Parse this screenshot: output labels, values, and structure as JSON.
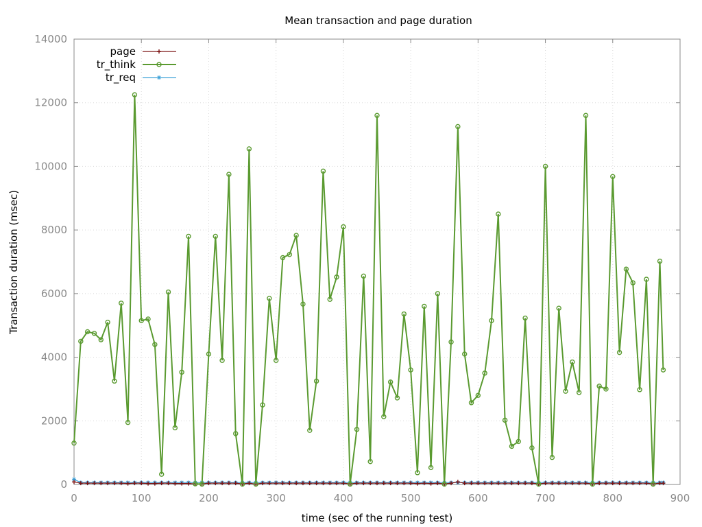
{
  "chart_data": {
    "type": "line",
    "title": "Mean transaction and page duration",
    "xlabel": "time (sec of the running test)",
    "ylabel": "Transaction duration (msec)",
    "xlim": [
      0,
      900
    ],
    "ylim": [
      0,
      14000
    ],
    "xticks": [
      0,
      100,
      200,
      300,
      400,
      500,
      600,
      700,
      800,
      900
    ],
    "yticks": [
      0,
      2000,
      4000,
      6000,
      8000,
      10000,
      12000,
      14000
    ],
    "grid": true,
    "legend_position": "top-left",
    "series": [
      {
        "name": "page",
        "color": "#7a1010",
        "marker": "plus",
        "points": [
          [
            0,
            80
          ],
          [
            10,
            40
          ],
          [
            20,
            40
          ],
          [
            30,
            40
          ],
          [
            40,
            40
          ],
          [
            50,
            40
          ],
          [
            60,
            40
          ],
          [
            70,
            40
          ],
          [
            80,
            30
          ],
          [
            90,
            40
          ],
          [
            100,
            40
          ],
          [
            110,
            30
          ],
          [
            120,
            30
          ],
          [
            130,
            40
          ],
          [
            140,
            40
          ],
          [
            150,
            30
          ],
          [
            160,
            30
          ],
          [
            170,
            30
          ],
          [
            180,
            20
          ],
          [
            190,
            20
          ],
          [
            200,
            40
          ],
          [
            210,
            40
          ],
          [
            220,
            40
          ],
          [
            230,
            40
          ],
          [
            240,
            40
          ],
          [
            250,
            20
          ],
          [
            260,
            40
          ],
          [
            270,
            10
          ],
          [
            280,
            40
          ],
          [
            290,
            40
          ],
          [
            300,
            40
          ],
          [
            310,
            40
          ],
          [
            320,
            40
          ],
          [
            330,
            40
          ],
          [
            340,
            40
          ],
          [
            350,
            40
          ],
          [
            360,
            40
          ],
          [
            370,
            40
          ],
          [
            380,
            40
          ],
          [
            390,
            40
          ],
          [
            400,
            40
          ],
          [
            410,
            20
          ],
          [
            420,
            40
          ],
          [
            430,
            40
          ],
          [
            440,
            40
          ],
          [
            450,
            40
          ],
          [
            460,
            40
          ],
          [
            470,
            40
          ],
          [
            480,
            40
          ],
          [
            490,
            40
          ],
          [
            500,
            40
          ],
          [
            510,
            30
          ],
          [
            520,
            40
          ],
          [
            530,
            30
          ],
          [
            540,
            40
          ],
          [
            550,
            20
          ],
          [
            560,
            40
          ],
          [
            570,
            80
          ],
          [
            580,
            40
          ],
          [
            590,
            40
          ],
          [
            600,
            40
          ],
          [
            610,
            40
          ],
          [
            620,
            40
          ],
          [
            630,
            40
          ],
          [
            640,
            40
          ],
          [
            650,
            40
          ],
          [
            660,
            40
          ],
          [
            670,
            40
          ],
          [
            680,
            40
          ],
          [
            690,
            20
          ],
          [
            700,
            40
          ],
          [
            710,
            40
          ],
          [
            720,
            40
          ],
          [
            730,
            40
          ],
          [
            740,
            40
          ],
          [
            750,
            40
          ],
          [
            760,
            40
          ],
          [
            770,
            20
          ],
          [
            780,
            40
          ],
          [
            790,
            40
          ],
          [
            800,
            40
          ],
          [
            810,
            40
          ],
          [
            820,
            40
          ],
          [
            830,
            40
          ],
          [
            840,
            40
          ],
          [
            850,
            40
          ],
          [
            860,
            20
          ],
          [
            870,
            40
          ],
          [
            875,
            40
          ]
        ]
      },
      {
        "name": "tr_think",
        "color": "#5a9a30",
        "marker": "circle",
        "points": [
          [
            0,
            1300
          ],
          [
            10,
            4500
          ],
          [
            20,
            4800
          ],
          [
            30,
            4750
          ],
          [
            40,
            4550
          ],
          [
            50,
            5100
          ],
          [
            60,
            3250
          ],
          [
            70,
            5700
          ],
          [
            80,
            1950
          ],
          [
            90,
            12250
          ],
          [
            100,
            5150
          ],
          [
            110,
            5200
          ],
          [
            120,
            4400
          ],
          [
            130,
            320
          ],
          [
            140,
            6050
          ],
          [
            150,
            1780
          ],
          [
            160,
            3530
          ],
          [
            170,
            7800
          ],
          [
            180,
            20
          ],
          [
            190,
            10
          ],
          [
            200,
            4100
          ],
          [
            210,
            7800
          ],
          [
            220,
            3900
          ],
          [
            230,
            9750
          ],
          [
            240,
            1600
          ],
          [
            250,
            10
          ],
          [
            260,
            10550
          ],
          [
            270,
            10
          ],
          [
            280,
            2500
          ],
          [
            290,
            5850
          ],
          [
            300,
            3900
          ],
          [
            310,
            7130
          ],
          [
            320,
            7230
          ],
          [
            330,
            7830
          ],
          [
            340,
            5670
          ],
          [
            350,
            1700
          ],
          [
            360,
            3250
          ],
          [
            370,
            9850
          ],
          [
            380,
            5820
          ],
          [
            390,
            6520
          ],
          [
            400,
            8100
          ],
          [
            410,
            10
          ],
          [
            420,
            1730
          ],
          [
            430,
            6550
          ],
          [
            440,
            720
          ],
          [
            450,
            11600
          ],
          [
            460,
            2130
          ],
          [
            470,
            3220
          ],
          [
            480,
            2720
          ],
          [
            490,
            5360
          ],
          [
            500,
            3600
          ],
          [
            510,
            370
          ],
          [
            520,
            5600
          ],
          [
            530,
            530
          ],
          [
            540,
            6000
          ],
          [
            550,
            10
          ],
          [
            560,
            4480
          ],
          [
            570,
            11250
          ],
          [
            580,
            4100
          ],
          [
            590,
            2570
          ],
          [
            600,
            2800
          ],
          [
            610,
            3500
          ],
          [
            620,
            5150
          ],
          [
            630,
            8500
          ],
          [
            640,
            2020
          ],
          [
            650,
            1200
          ],
          [
            660,
            1350
          ],
          [
            670,
            5230
          ],
          [
            680,
            1150
          ],
          [
            690,
            10
          ],
          [
            700,
            10000
          ],
          [
            710,
            850
          ],
          [
            720,
            5540
          ],
          [
            730,
            2930
          ],
          [
            740,
            3850
          ],
          [
            750,
            2890
          ],
          [
            760,
            11600
          ],
          [
            770,
            10
          ],
          [
            780,
            3090
          ],
          [
            790,
            3000
          ],
          [
            800,
            9680
          ],
          [
            810,
            4150
          ],
          [
            820,
            6770
          ],
          [
            830,
            6340
          ],
          [
            840,
            2980
          ],
          [
            850,
            6450
          ],
          [
            860,
            10
          ],
          [
            870,
            7020
          ],
          [
            875,
            3600
          ]
        ]
      },
      {
        "name": "tr_req",
        "color": "#3aa0d8",
        "marker": "star",
        "points": [
          [
            0,
            160
          ],
          [
            10,
            60
          ],
          [
            20,
            60
          ],
          [
            30,
            60
          ],
          [
            40,
            60
          ],
          [
            50,
            60
          ],
          [
            60,
            60
          ],
          [
            70,
            60
          ],
          [
            80,
            60
          ],
          [
            90,
            60
          ],
          [
            100,
            60
          ],
          [
            110,
            60
          ],
          [
            120,
            60
          ],
          [
            130,
            60
          ],
          [
            140,
            60
          ],
          [
            150,
            60
          ],
          [
            160,
            60
          ],
          [
            170,
            60
          ],
          [
            180,
            60
          ],
          [
            190,
            60
          ],
          [
            200,
            60
          ],
          [
            210,
            60
          ],
          [
            220,
            60
          ],
          [
            230,
            60
          ],
          [
            240,
            60
          ],
          [
            250,
            60
          ],
          [
            260,
            60
          ],
          [
            270,
            60
          ],
          [
            280,
            60
          ],
          [
            290,
            60
          ],
          [
            300,
            60
          ],
          [
            310,
            60
          ],
          [
            320,
            60
          ],
          [
            330,
            60
          ],
          [
            340,
            60
          ],
          [
            350,
            60
          ],
          [
            360,
            60
          ],
          [
            370,
            60
          ],
          [
            380,
            60
          ],
          [
            390,
            60
          ],
          [
            400,
            60
          ],
          [
            410,
            60
          ],
          [
            420,
            60
          ],
          [
            430,
            60
          ],
          [
            440,
            60
          ],
          [
            450,
            60
          ],
          [
            460,
            60
          ],
          [
            470,
            60
          ],
          [
            480,
            60
          ],
          [
            490,
            60
          ],
          [
            500,
            60
          ],
          [
            510,
            60
          ],
          [
            520,
            60
          ],
          [
            530,
            60
          ],
          [
            540,
            60
          ],
          [
            550,
            60
          ],
          [
            560,
            60
          ],
          [
            570,
            60
          ],
          [
            580,
            60
          ],
          [
            590,
            60
          ],
          [
            600,
            60
          ],
          [
            610,
            60
          ],
          [
            620,
            60
          ],
          [
            630,
            60
          ],
          [
            640,
            60
          ],
          [
            650,
            60
          ],
          [
            660,
            60
          ],
          [
            670,
            60
          ],
          [
            680,
            60
          ],
          [
            690,
            60
          ],
          [
            700,
            60
          ],
          [
            710,
            60
          ],
          [
            720,
            60
          ],
          [
            730,
            60
          ],
          [
            740,
            60
          ],
          [
            750,
            60
          ],
          [
            760,
            60
          ],
          [
            770,
            60
          ],
          [
            780,
            60
          ],
          [
            790,
            60
          ],
          [
            800,
            60
          ],
          [
            810,
            60
          ],
          [
            820,
            60
          ],
          [
            830,
            60
          ],
          [
            840,
            60
          ],
          [
            850,
            60
          ],
          [
            860,
            60
          ],
          [
            870,
            60
          ],
          [
            875,
            60
          ]
        ]
      }
    ]
  }
}
